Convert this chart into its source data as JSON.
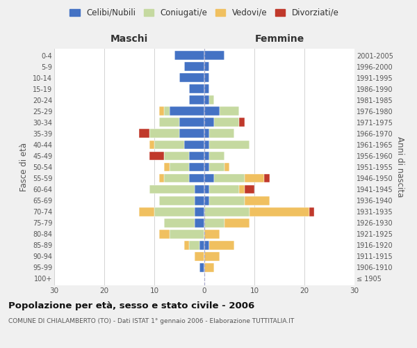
{
  "age_groups": [
    "100+",
    "95-99",
    "90-94",
    "85-89",
    "80-84",
    "75-79",
    "70-74",
    "65-69",
    "60-64",
    "55-59",
    "50-54",
    "45-49",
    "40-44",
    "35-39",
    "30-34",
    "25-29",
    "20-24",
    "15-19",
    "10-14",
    "5-9",
    "0-4"
  ],
  "birth_years": [
    "≤ 1905",
    "1906-1910",
    "1911-1915",
    "1916-1920",
    "1921-1925",
    "1926-1930",
    "1931-1935",
    "1936-1940",
    "1941-1945",
    "1946-1950",
    "1951-1955",
    "1956-1960",
    "1961-1965",
    "1966-1970",
    "1971-1975",
    "1976-1980",
    "1981-1985",
    "1986-1990",
    "1991-1995",
    "1996-2000",
    "2001-2005"
  ],
  "male": {
    "celibi": [
      0,
      1,
      0,
      1,
      0,
      2,
      2,
      2,
      2,
      3,
      3,
      3,
      4,
      5,
      5,
      7,
      3,
      3,
      5,
      4,
      6
    ],
    "coniugati": [
      0,
      0,
      0,
      2,
      7,
      6,
      8,
      7,
      9,
      5,
      4,
      5,
      6,
      6,
      4,
      1,
      0,
      0,
      0,
      0,
      0
    ],
    "vedovi": [
      0,
      0,
      2,
      1,
      2,
      0,
      3,
      0,
      0,
      1,
      1,
      0,
      1,
      0,
      0,
      1,
      0,
      0,
      0,
      0,
      0
    ],
    "divorziati": [
      0,
      0,
      0,
      0,
      0,
      0,
      0,
      0,
      0,
      0,
      0,
      3,
      0,
      2,
      0,
      0,
      0,
      0,
      0,
      0,
      0
    ]
  },
  "female": {
    "nubili": [
      0,
      0,
      0,
      1,
      0,
      0,
      0,
      1,
      1,
      2,
      1,
      1,
      1,
      1,
      2,
      3,
      1,
      1,
      1,
      1,
      4
    ],
    "coniugate": [
      0,
      0,
      0,
      0,
      0,
      4,
      9,
      7,
      6,
      6,
      3,
      3,
      8,
      5,
      5,
      4,
      1,
      0,
      0,
      0,
      0
    ],
    "vedove": [
      0,
      2,
      3,
      5,
      3,
      5,
      12,
      5,
      1,
      4,
      1,
      0,
      0,
      0,
      0,
      0,
      0,
      0,
      0,
      0,
      0
    ],
    "divorziate": [
      0,
      0,
      0,
      0,
      0,
      0,
      1,
      0,
      2,
      1,
      0,
      0,
      0,
      0,
      1,
      0,
      0,
      0,
      0,
      0,
      0
    ]
  },
  "colors": {
    "celibi_nubili": "#4472c4",
    "coniugati_e": "#c5d9a0",
    "vedovi_e": "#f0c060",
    "divorziati_e": "#c0392b"
  },
  "xlim": [
    -30,
    30
  ],
  "xticks": [
    -30,
    -20,
    -10,
    0,
    10,
    20,
    30
  ],
  "xlabel_left": "Maschi",
  "xlabel_right": "Femmine",
  "ylabel_left": "Fasce di età",
  "ylabel_right": "Anni di nascita",
  "title": "Popolazione per età, sesso e stato civile - 2006",
  "subtitle": "COMUNE DI CHIALAMBERTO (TO) - Dati ISTAT 1° gennaio 2006 - Elaborazione TUTTITALIA.IT",
  "legend_labels": [
    "Celibi/Nubili",
    "Coniugati/e",
    "Vedovi/e",
    "Divorziati/e"
  ],
  "bg_color": "#f0f0f0",
  "plot_bg": "#ffffff"
}
